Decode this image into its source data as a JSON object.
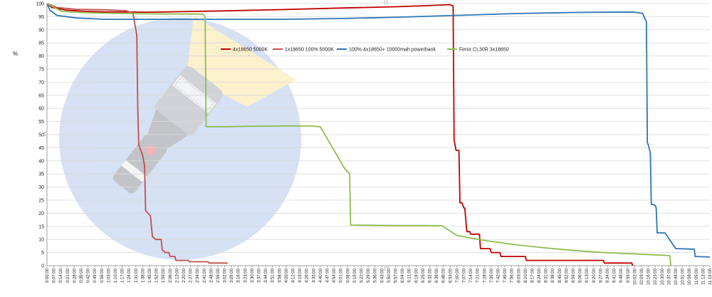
{
  "chart_data": {
    "type": "line",
    "title": "",
    "xlabel": "",
    "ylabel": "%",
    "ylim": [
      0,
      100
    ],
    "yticks": [
      0,
      5,
      10,
      15,
      20,
      25,
      30,
      35,
      40,
      45,
      50,
      55,
      60,
      65,
      70,
      75,
      80,
      85,
      90,
      95,
      100
    ],
    "x_unit": "h:mm:ss",
    "xlim": [
      "0:00:00",
      "11:19:00"
    ],
    "grid": true,
    "legend_placement": "top-center",
    "x_tick_labels": [
      "0:00:00",
      "0:07:00",
      "0:14:00",
      "0:21:00",
      "0:28:00",
      "0:35:00",
      "0:42:00",
      "0:49:00",
      "0:56:00",
      "1:03:00",
      "1:10:00",
      "1:17:00",
      "1:24:00",
      "1:31:00",
      "1:38:00",
      "1:45:00",
      "1:52:00",
      "1:59:00",
      "2:06:00",
      "2:13:00",
      "2:20:00",
      "2:27:00",
      "2:34:00",
      "2:41:00",
      "2:48:00",
      "2:55:00",
      "3:02:00",
      "3:09:00",
      "3:16:00",
      "3:23:00",
      "3:30:00",
      "3:37:00",
      "3:44:00",
      "3:51:00",
      "3:58:00",
      "4:05:00",
      "4:12:00",
      "4:19:00",
      "4:26:00",
      "4:33:00",
      "4:40:00",
      "4:47:00",
      "4:54:00",
      "5:01:00",
      "5:08:00",
      "5:15:00",
      "5:22:00",
      "5:29:00",
      "5:36:00",
      "5:43:00",
      "5:50:00",
      "5:57:00",
      "6:04:00",
      "6:11:00",
      "6:18:00",
      "6:25:00",
      "6:32:00",
      "6:39:00",
      "6:46:00",
      "6:53:00",
      "7:00:00",
      "7:07:00",
      "7:14:00",
      "7:21:00",
      "7:28:00",
      "7:35:00",
      "7:42:00",
      "7:49:00",
      "7:56:00",
      "8:03:00",
      "8:10:00",
      "8:17:00",
      "8:24:00",
      "8:31:00",
      "8:38:00",
      "8:45:00",
      "8:52:00",
      "8:59:00",
      "9:06:00",
      "9:13:00",
      "9:20:00",
      "9:27:00",
      "9:34:00",
      "9:41:00",
      "9:48:00",
      "9:55:00",
      "10:02:00",
      "10:09:00",
      "10:16:00",
      "10:23:00",
      "10:30:00",
      "10:37:00",
      "10:44:00",
      "10:51:00",
      "10:58:00",
      "11:05:00",
      "11:12:00",
      "11:19:00"
    ],
    "series": [
      {
        "name": "4x18650 5000K",
        "color": "#c00000",
        "x": [
          "0:00:00",
          "0:05:00",
          "0:20:00",
          "0:40:00",
          "1:00:00",
          "1:20:00",
          "1:40:00",
          "2:00:00",
          "3:00:00",
          "4:00:00",
          "5:00:00",
          "6:00:00",
          "6:30:00",
          "6:53:00",
          "6:56:00",
          "6:57:00",
          "6:59:00",
          "7:02:00",
          "7:03:00",
          "7:05:00",
          "7:07:00",
          "7:08:00",
          "7:10:00",
          "7:13:00",
          "7:14:00",
          "7:23:00",
          "7:24:00",
          "7:34:00",
          "7:35:00",
          "7:44:00",
          "7:45:00",
          "8:10:00",
          "8:11:00",
          "9:30:00",
          "9:31:00",
          "9:59:00",
          "10:00:00"
        ],
        "y": [
          100,
          98.5,
          97.5,
          97,
          96.8,
          96.8,
          96.7,
          96.8,
          97.2,
          97.7,
          98.3,
          98.8,
          99.2,
          99.6,
          99,
          48,
          44,
          44,
          24,
          24,
          22,
          22,
          13,
          13,
          12,
          12,
          6.5,
          6.5,
          5,
          5,
          3.5,
          3.5,
          2,
          2,
          1,
          1,
          0
        ]
      },
      {
        "name": "1x18650 100% 5000K",
        "color": "#c0504d",
        "x": [
          "0:00:00",
          "0:10:00",
          "0:30:00",
          "1:00:00",
          "1:20:00",
          "1:28:00",
          "1:32:00",
          "1:33:00",
          "1:34:00",
          "1:38:00",
          "1:40:00",
          "1:41:00",
          "1:46:00",
          "1:47:00",
          "1:48:00",
          "1:50:00",
          "1:51:00",
          "1:57:00",
          "1:58:00",
          "2:00:00",
          "2:01:00",
          "2:05:00",
          "2:06:00",
          "2:11:00",
          "2:12:00",
          "2:25:00",
          "2:26:00",
          "2:45:00",
          "2:46:00",
          "3:04:00",
          "3:05:00"
        ],
        "y": [
          100,
          98.5,
          97.8,
          97.6,
          97.3,
          96.5,
          88,
          60,
          46,
          42,
          38,
          21,
          19,
          15,
          11,
          10.5,
          10,
          10,
          6,
          5.5,
          5,
          5,
          3.5,
          3.5,
          2,
          2,
          1.5,
          1.5,
          1,
          1,
          0.8
        ]
      },
      {
        "name": "100% 4x18650+ 10000mah powerbank",
        "color": "#2e75b6",
        "x": [
          "0:00:00",
          "0:03:00",
          "0:10:00",
          "0:30:00",
          "1:00:00",
          "2:00:00",
          "3:00:00",
          "4:00:00",
          "5:00:00",
          "6:00:00",
          "7:00:00",
          "8:00:00",
          "9:00:00",
          "10:00:00",
          "10:10:00",
          "10:14:00",
          "10:15:00",
          "10:16:00",
          "10:18:00",
          "10:19:00",
          "10:23:00",
          "10:24:00",
          "10:25:00",
          "10:33:00",
          "10:34:00",
          "10:44:00",
          "10:45:00",
          "11:03:00",
          "11:04:00",
          "11:19:00"
        ],
        "y": [
          100,
          97.5,
          95.5,
          94.5,
          94,
          94,
          94,
          94,
          94.3,
          94.8,
          95.5,
          96.2,
          96.6,
          96.8,
          96.3,
          93,
          47,
          46,
          43,
          23.5,
          23,
          22,
          12.5,
          12.5,
          12,
          6.5,
          6.5,
          6.3,
          3.5,
          3.3
        ]
      },
      {
        "name": "Fenix CL30R 3x18650",
        "color": "#8cbe4f",
        "x": [
          "0:00:00",
          "0:15:00",
          "0:40:00",
          "1:20:00",
          "2:00:00",
          "2:40:00",
          "2:42:00",
          "2:43:00",
          "3:00:00",
          "3:30:00",
          "4:00:00",
          "4:30:00",
          "4:40:00",
          "5:05:00",
          "5:10:00",
          "5:11:00",
          "6:00:00",
          "6:30:00",
          "6:45:00",
          "7:00:00",
          "7:30:00",
          "8:00:00",
          "8:30:00",
          "9:00:00",
          "9:30:00",
          "10:00:00",
          "10:30:00",
          "10:38:00",
          "10:39:00"
        ],
        "y": [
          100,
          97,
          96.5,
          96.2,
          96,
          96,
          95,
          53,
          53,
          53.2,
          53.3,
          53.3,
          53,
          37,
          35,
          15.5,
          15.3,
          15.3,
          15.2,
          11.5,
          9.5,
          8,
          6.8,
          5.8,
          5,
          4.5,
          4,
          3.8,
          0
        ]
      }
    ]
  }
}
